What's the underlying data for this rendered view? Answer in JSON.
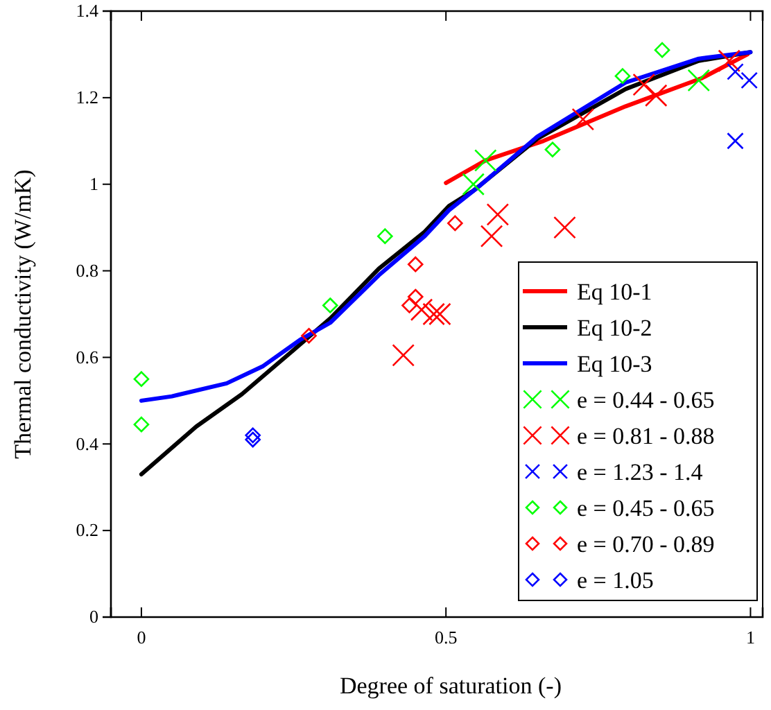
{
  "chart_data": {
    "type": "scatter",
    "xlabel": "Degree of saturation (-)",
    "ylabel": "Thermal conductivity (W/mK)",
    "xlim": [
      -0.05,
      1.02
    ],
    "ylim": [
      0,
      1.4
    ],
    "xticks": [
      0,
      0.5,
      1
    ],
    "yticks": [
      0,
      0.2,
      0.4,
      0.6,
      0.8,
      1,
      1.2,
      1.4
    ],
    "grid": false,
    "legend": "bottom right",
    "series": [
      {
        "name": "Eq 10-1",
        "type": "line",
        "color": "#ff0000",
        "marker": "none",
        "line_style": "solid",
        "x": [
          0.5,
          0.565,
          0.66,
          0.795,
          0.92,
          0.995
        ],
        "values": [
          1.003,
          1.055,
          1.1,
          1.18,
          1.245,
          1.3
        ]
      },
      {
        "name": "Eq 10-2",
        "type": "line",
        "color": "#000000",
        "marker": "none",
        "line_style": "solid",
        "x": [
          0,
          0.09,
          0.165,
          0.24,
          0.31,
          0.39,
          0.465,
          0.505,
          0.545,
          0.65,
          0.795,
          0.915,
          1.0
        ],
        "values": [
          0.33,
          0.44,
          0.515,
          0.605,
          0.69,
          0.805,
          0.89,
          0.95,
          0.985,
          1.105,
          1.22,
          1.285,
          1.305
        ]
      },
      {
        "name": "Eq 10-3",
        "type": "line",
        "color": "#0000ff",
        "marker": "none",
        "line_style": "solid",
        "x": [
          0,
          0.05,
          0.14,
          0.2,
          0.26,
          0.31,
          0.39,
          0.465,
          0.505,
          0.55,
          0.65,
          0.795,
          0.915,
          1.0
        ],
        "values": [
          0.5,
          0.51,
          0.54,
          0.58,
          0.64,
          0.68,
          0.79,
          0.88,
          0.94,
          0.99,
          1.11,
          1.235,
          1.29,
          1.305
        ]
      },
      {
        "name": "e = 0.44 - 0.65",
        "color": "#00ff00",
        "marker": "cross",
        "x": [
          0.565,
          0.545,
          0.915
        ],
        "values": [
          1.055,
          1.0,
          1.24
        ]
      },
      {
        "name": "e = 0.81 - 0.88",
        "color": "#ff0000",
        "marker": "cross",
        "x": [
          0.43,
          0.46,
          0.48,
          0.49,
          0.585,
          0.575,
          0.695,
          0.725,
          0.845,
          0.825,
          0.965
        ],
        "values": [
          0.605,
          0.71,
          0.7,
          0.7,
          0.93,
          0.88,
          0.9,
          1.15,
          1.205,
          1.23,
          1.285
        ]
      },
      {
        "name": "e = 1.23 - 1.4",
        "color": "#0000ff",
        "marker": "cross",
        "x": [
          0.975,
          0.998,
          0.975
        ],
        "values": [
          1.26,
          1.24,
          1.1
        ]
      },
      {
        "name": "e = 0.45 - 0.65",
        "color": "#00ff00",
        "marker": "diamond",
        "x": [
          0,
          0,
          0.31,
          0.4,
          0.675,
          0.79,
          0.855
        ],
        "values": [
          0.55,
          0.445,
          0.72,
          0.88,
          1.08,
          1.25,
          1.31
        ]
      },
      {
        "name": "e = 0.70 - 0.89",
        "color": "#ff0000",
        "marker": "diamond",
        "x": [
          0.275,
          0.44,
          0.45,
          0.45,
          0.515
        ],
        "values": [
          0.65,
          0.72,
          0.74,
          0.815,
          0.91
        ]
      },
      {
        "name": "e = 1.05",
        "color": "#0000ff",
        "marker": "diamond",
        "x": [
          0.183,
          0.183
        ],
        "values": [
          0.42,
          0.41
        ]
      }
    ]
  }
}
